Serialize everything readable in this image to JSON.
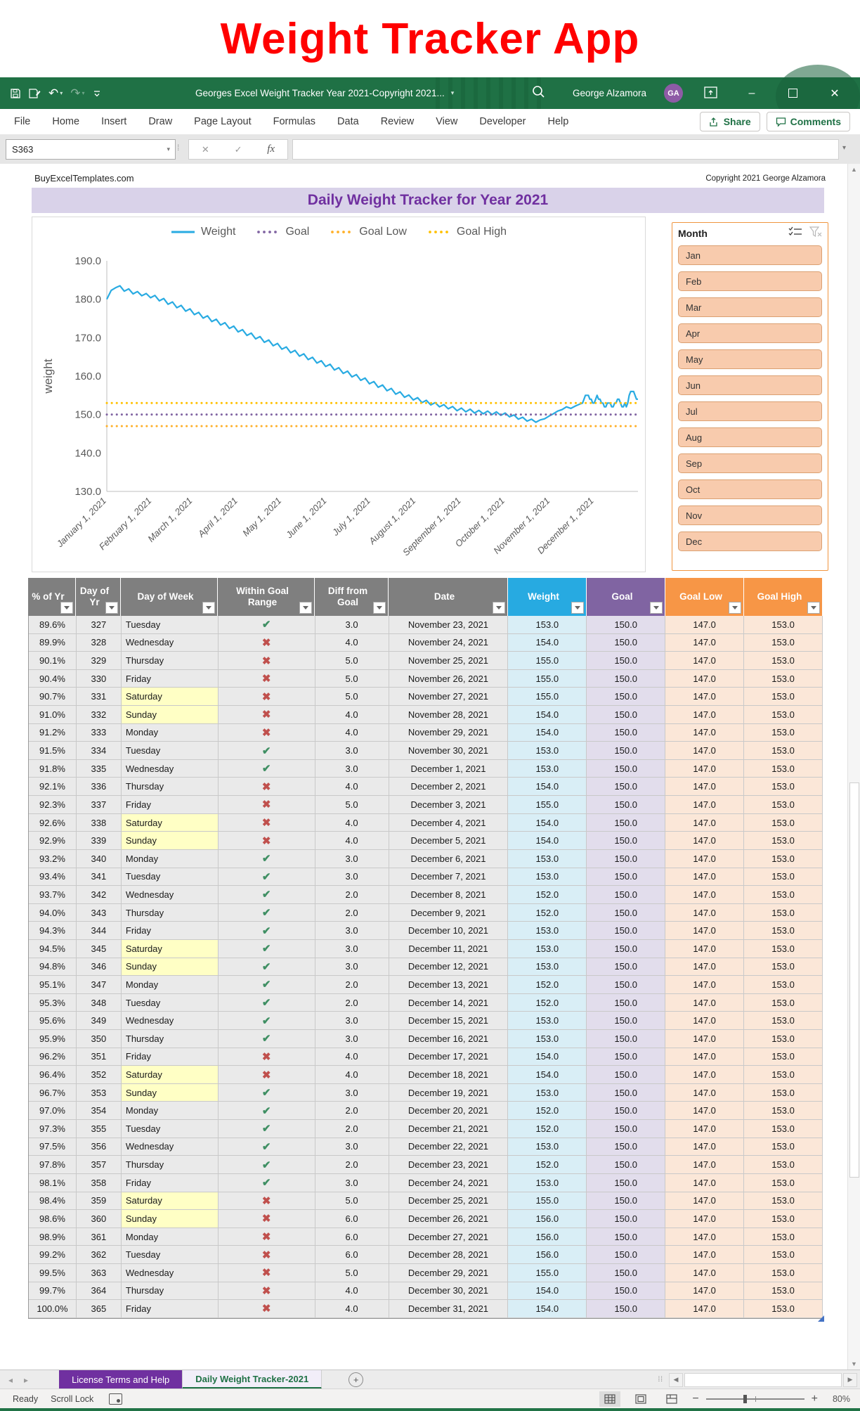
{
  "page_title": "Weight Tracker App",
  "titlebar": {
    "doc_title": "Georges Excel Weight Tracker Year 2021-Copyright 2021...",
    "user_name": "George Alzamora",
    "avatar_initials": "GA"
  },
  "ribbon": {
    "tabs": [
      "File",
      "Home",
      "Insert",
      "Draw",
      "Page Layout",
      "Formulas",
      "Data",
      "Review",
      "View",
      "Developer",
      "Help"
    ],
    "share_label": "Share",
    "comments_label": "Comments"
  },
  "formula_bar": {
    "name_box": "S363",
    "fx_label": "fx"
  },
  "sheet_meta": {
    "left_text": "BuyExcelTemplates.com",
    "right_text": "Copyright 2021  George Alzamora"
  },
  "banner": {
    "title": "Daily Weight Tracker for Year 2021"
  },
  "chart_data": {
    "type": "line",
    "ylabel": "weight",
    "ylim": [
      130,
      190
    ],
    "yticks": [
      {
        "label": "190.0",
        "value": 190
      },
      {
        "label": "180.0",
        "value": 180
      },
      {
        "label": "170.0",
        "value": 170
      },
      {
        "label": "160.0",
        "value": 160
      },
      {
        "label": "150.0",
        "value": 150
      },
      {
        "label": "140.0",
        "value": 140
      },
      {
        "label": "130.0",
        "value": 130
      }
    ],
    "x_ticks": [
      {
        "label": "January 1, 2021",
        "day": 1
      },
      {
        "label": "February 1, 2021",
        "day": 32
      },
      {
        "label": "March 1, 2021",
        "day": 60
      },
      {
        "label": "April 1, 2021",
        "day": 91
      },
      {
        "label": "May 1, 2021",
        "day": 121
      },
      {
        "label": "June 1, 2021",
        "day": 152
      },
      {
        "label": "July 1, 2021",
        "day": 182
      },
      {
        "label": "August 1, 2021",
        "day": 213
      },
      {
        "label": "September 1, 2021",
        "day": 244
      },
      {
        "label": "October 1, 2021",
        "day": 274
      },
      {
        "label": "November 1, 2021",
        "day": 305
      },
      {
        "label": "December 1, 2021",
        "day": 335
      }
    ],
    "series": [
      {
        "name": "Weight",
        "color": "#29abe2",
        "style": "solid",
        "points": [
          [
            1,
            180.0
          ],
          [
            4,
            182.3
          ],
          [
            7,
            183.0
          ],
          [
            10,
            183.5
          ],
          [
            13,
            182.1
          ],
          [
            16,
            182.7
          ],
          [
            19,
            181.4
          ],
          [
            22,
            182.0
          ],
          [
            25,
            180.9
          ],
          [
            28,
            181.5
          ],
          [
            31,
            180.4
          ],
          [
            34,
            181.0
          ],
          [
            37,
            179.6
          ],
          [
            40,
            180.2
          ],
          [
            43,
            178.7
          ],
          [
            46,
            179.3
          ],
          [
            49,
            177.8
          ],
          [
            52,
            178.4
          ],
          [
            55,
            176.9
          ],
          [
            58,
            177.5
          ],
          [
            61,
            176.0
          ],
          [
            64,
            176.6
          ],
          [
            67,
            175.1
          ],
          [
            70,
            175.7
          ],
          [
            73,
            174.2
          ],
          [
            76,
            174.8
          ],
          [
            79,
            173.3
          ],
          [
            82,
            173.9
          ],
          [
            85,
            172.4
          ],
          [
            88,
            173.0
          ],
          [
            91,
            171.5
          ],
          [
            94,
            172.1
          ],
          [
            97,
            170.6
          ],
          [
            100,
            171.2
          ],
          [
            103,
            169.7
          ],
          [
            106,
            170.3
          ],
          [
            109,
            168.8
          ],
          [
            112,
            169.4
          ],
          [
            115,
            167.9
          ],
          [
            118,
            168.5
          ],
          [
            121,
            167.0
          ],
          [
            124,
            167.6
          ],
          [
            127,
            166.1
          ],
          [
            130,
            166.7
          ],
          [
            133,
            165.2
          ],
          [
            136,
            165.8
          ],
          [
            139,
            164.3
          ],
          [
            142,
            164.9
          ],
          [
            145,
            163.4
          ],
          [
            148,
            164.0
          ],
          [
            151,
            162.5
          ],
          [
            154,
            163.1
          ],
          [
            157,
            161.6
          ],
          [
            160,
            162.2
          ],
          [
            163,
            160.7
          ],
          [
            166,
            161.3
          ],
          [
            169,
            159.8
          ],
          [
            172,
            160.4
          ],
          [
            175,
            158.9
          ],
          [
            178,
            159.5
          ],
          [
            181,
            158.0
          ],
          [
            184,
            158.6
          ],
          [
            187,
            157.1
          ],
          [
            190,
            157.7
          ],
          [
            193,
            156.2
          ],
          [
            196,
            156.8
          ],
          [
            199,
            155.3
          ],
          [
            202,
            155.9
          ],
          [
            205,
            154.5
          ],
          [
            208,
            155.1
          ],
          [
            211,
            153.8
          ],
          [
            214,
            154.4
          ],
          [
            217,
            153.1
          ],
          [
            220,
            153.7
          ],
          [
            223,
            152.5
          ],
          [
            226,
            153.1
          ],
          [
            229,
            152.0
          ],
          [
            232,
            152.6
          ],
          [
            235,
            151.5
          ],
          [
            238,
            152.1
          ],
          [
            241,
            151.0
          ],
          [
            244,
            151.7
          ],
          [
            247,
            150.7
          ],
          [
            250,
            151.4
          ],
          [
            253,
            150.4
          ],
          [
            256,
            151.1
          ],
          [
            259,
            150.2
          ],
          [
            262,
            150.9
          ],
          [
            265,
            150.0
          ],
          [
            268,
            150.7
          ],
          [
            271,
            149.8
          ],
          [
            274,
            150.4
          ],
          [
            277,
            149.4
          ],
          [
            280,
            149.9
          ],
          [
            283,
            148.8
          ],
          [
            286,
            149.3
          ],
          [
            289,
            148.3
          ],
          [
            292,
            148.8
          ],
          [
            295,
            148.0
          ],
          [
            298,
            148.6
          ],
          [
            301,
            148.9
          ],
          [
            304,
            149.6
          ],
          [
            307,
            150.2
          ],
          [
            310,
            150.9
          ],
          [
            313,
            151.3
          ],
          [
            316,
            152.0
          ],
          [
            319,
            151.6
          ],
          [
            322,
            152.2
          ],
          [
            325,
            152.7
          ],
          [
            327,
            153.0
          ],
          [
            328,
            154.0
          ],
          [
            329,
            155.0
          ],
          [
            330,
            155.0
          ],
          [
            331,
            155.0
          ],
          [
            332,
            154.0
          ],
          [
            333,
            154.0
          ],
          [
            334,
            153.0
          ],
          [
            335,
            153.0
          ],
          [
            336,
            154.0
          ],
          [
            337,
            155.0
          ],
          [
            338,
            154.0
          ],
          [
            339,
            154.0
          ],
          [
            340,
            153.0
          ],
          [
            341,
            153.0
          ],
          [
            342,
            152.0
          ],
          [
            343,
            152.0
          ],
          [
            344,
            153.0
          ],
          [
            345,
            153.0
          ],
          [
            346,
            153.0
          ],
          [
            347,
            152.0
          ],
          [
            348,
            152.0
          ],
          [
            349,
            153.0
          ],
          [
            350,
            153.0
          ],
          [
            351,
            154.0
          ],
          [
            352,
            154.0
          ],
          [
            353,
            153.0
          ],
          [
            354,
            152.0
          ],
          [
            355,
            152.0
          ],
          [
            356,
            153.0
          ],
          [
            357,
            152.0
          ],
          [
            358,
            153.0
          ],
          [
            359,
            155.0
          ],
          [
            360,
            156.0
          ],
          [
            361,
            156.0
          ],
          [
            362,
            156.0
          ],
          [
            363,
            155.0
          ],
          [
            364,
            154.0
          ],
          [
            365,
            154.0
          ]
        ]
      },
      {
        "name": "Goal",
        "color": "#8064a2",
        "style": "dotted",
        "value": 150
      },
      {
        "name": "Goal Low",
        "color": "#ffb028",
        "style": "dotted",
        "value": 147
      },
      {
        "name": "Goal High",
        "color": "#ffc000",
        "style": "dotted",
        "value": 153
      }
    ]
  },
  "slicer": {
    "title": "Month",
    "items": [
      "Jan",
      "Feb",
      "Mar",
      "Apr",
      "May",
      "Jun",
      "Jul",
      "Aug",
      "Sep",
      "Oct",
      "Nov",
      "Dec"
    ]
  },
  "table": {
    "headers": [
      {
        "label": "% of Yr",
        "bg": "#7f7f7f"
      },
      {
        "label": "Day of Yr",
        "bg": "#7f7f7f"
      },
      {
        "label": "Day of Week",
        "bg": "#7f7f7f"
      },
      {
        "label": "Within Goal Range",
        "bg": "#7f7f7f"
      },
      {
        "label": "Diff from Goal",
        "bg": "#7f7f7f"
      },
      {
        "label": "Date",
        "bg": "#7f7f7f"
      },
      {
        "label": "Weight",
        "bg": "#27aae1"
      },
      {
        "label": "Goal",
        "bg": "#8064a2"
      },
      {
        "label": "Goal Low",
        "bg": "#f79646"
      },
      {
        "label": "Goal High",
        "bg": "#f79646"
      }
    ],
    "goal_value": "150.0",
    "goal_low_value": "147.0",
    "goal_high_value": "153.0",
    "rows": [
      [
        "89.6%",
        "327",
        "Tuesday",
        true,
        "3.0",
        "November 23, 2021",
        "153.0"
      ],
      [
        "89.9%",
        "328",
        "Wednesday",
        false,
        "4.0",
        "November 24, 2021",
        "154.0"
      ],
      [
        "90.1%",
        "329",
        "Thursday",
        false,
        "5.0",
        "November 25, 2021",
        "155.0"
      ],
      [
        "90.4%",
        "330",
        "Friday",
        false,
        "5.0",
        "November 26, 2021",
        "155.0"
      ],
      [
        "90.7%",
        "331",
        "Saturday",
        false,
        "5.0",
        "November 27, 2021",
        "155.0"
      ],
      [
        "91.0%",
        "332",
        "Sunday",
        false,
        "4.0",
        "November 28, 2021",
        "154.0"
      ],
      [
        "91.2%",
        "333",
        "Monday",
        false,
        "4.0",
        "November 29, 2021",
        "154.0"
      ],
      [
        "91.5%",
        "334",
        "Tuesday",
        true,
        "3.0",
        "November 30, 2021",
        "153.0"
      ],
      [
        "91.8%",
        "335",
        "Wednesday",
        true,
        "3.0",
        "December 1, 2021",
        "153.0"
      ],
      [
        "92.1%",
        "336",
        "Thursday",
        false,
        "4.0",
        "December 2, 2021",
        "154.0"
      ],
      [
        "92.3%",
        "337",
        "Friday",
        false,
        "5.0",
        "December 3, 2021",
        "155.0"
      ],
      [
        "92.6%",
        "338",
        "Saturday",
        false,
        "4.0",
        "December 4, 2021",
        "154.0"
      ],
      [
        "92.9%",
        "339",
        "Sunday",
        false,
        "4.0",
        "December 5, 2021",
        "154.0"
      ],
      [
        "93.2%",
        "340",
        "Monday",
        true,
        "3.0",
        "December 6, 2021",
        "153.0"
      ],
      [
        "93.4%",
        "341",
        "Tuesday",
        true,
        "3.0",
        "December 7, 2021",
        "153.0"
      ],
      [
        "93.7%",
        "342",
        "Wednesday",
        true,
        "2.0",
        "December 8, 2021",
        "152.0"
      ],
      [
        "94.0%",
        "343",
        "Thursday",
        true,
        "2.0",
        "December 9, 2021",
        "152.0"
      ],
      [
        "94.3%",
        "344",
        "Friday",
        true,
        "3.0",
        "December 10, 2021",
        "153.0"
      ],
      [
        "94.5%",
        "345",
        "Saturday",
        true,
        "3.0",
        "December 11, 2021",
        "153.0"
      ],
      [
        "94.8%",
        "346",
        "Sunday",
        true,
        "3.0",
        "December 12, 2021",
        "153.0"
      ],
      [
        "95.1%",
        "347",
        "Monday",
        true,
        "2.0",
        "December 13, 2021",
        "152.0"
      ],
      [
        "95.3%",
        "348",
        "Tuesday",
        true,
        "2.0",
        "December 14, 2021",
        "152.0"
      ],
      [
        "95.6%",
        "349",
        "Wednesday",
        true,
        "3.0",
        "December 15, 2021",
        "153.0"
      ],
      [
        "95.9%",
        "350",
        "Thursday",
        true,
        "3.0",
        "December 16, 2021",
        "153.0"
      ],
      [
        "96.2%",
        "351",
        "Friday",
        false,
        "4.0",
        "December 17, 2021",
        "154.0"
      ],
      [
        "96.4%",
        "352",
        "Saturday",
        false,
        "4.0",
        "December 18, 2021",
        "154.0"
      ],
      [
        "96.7%",
        "353",
        "Sunday",
        true,
        "3.0",
        "December 19, 2021",
        "153.0"
      ],
      [
        "97.0%",
        "354",
        "Monday",
        true,
        "2.0",
        "December 20, 2021",
        "152.0"
      ],
      [
        "97.3%",
        "355",
        "Tuesday",
        true,
        "2.0",
        "December 21, 2021",
        "152.0"
      ],
      [
        "97.5%",
        "356",
        "Wednesday",
        true,
        "3.0",
        "December 22, 2021",
        "153.0"
      ],
      [
        "97.8%",
        "357",
        "Thursday",
        true,
        "2.0",
        "December 23, 2021",
        "152.0"
      ],
      [
        "98.1%",
        "358",
        "Friday",
        true,
        "3.0",
        "December 24, 2021",
        "153.0"
      ],
      [
        "98.4%",
        "359",
        "Saturday",
        false,
        "5.0",
        "December 25, 2021",
        "155.0"
      ],
      [
        "98.6%",
        "360",
        "Sunday",
        false,
        "6.0",
        "December 26, 2021",
        "156.0"
      ],
      [
        "98.9%",
        "361",
        "Monday",
        false,
        "6.0",
        "December 27, 2021",
        "156.0"
      ],
      [
        "99.2%",
        "362",
        "Tuesday",
        false,
        "6.0",
        "December 28, 2021",
        "156.0"
      ],
      [
        "99.5%",
        "363",
        "Wednesday",
        false,
        "5.0",
        "December 29, 2021",
        "155.0"
      ],
      [
        "99.7%",
        "364",
        "Thursday",
        false,
        "4.0",
        "December 30, 2021",
        "154.0"
      ],
      [
        "100.0%",
        "365",
        "Friday",
        false,
        "4.0",
        "December 31, 2021",
        "154.0"
      ]
    ]
  },
  "sheet_tabs": {
    "tab1": "License Terms and Help",
    "tab2": "Daily Weight Tracker-2021"
  },
  "status": {
    "ready": "Ready",
    "scroll_lock": "Scroll Lock",
    "zoom": "80%"
  }
}
